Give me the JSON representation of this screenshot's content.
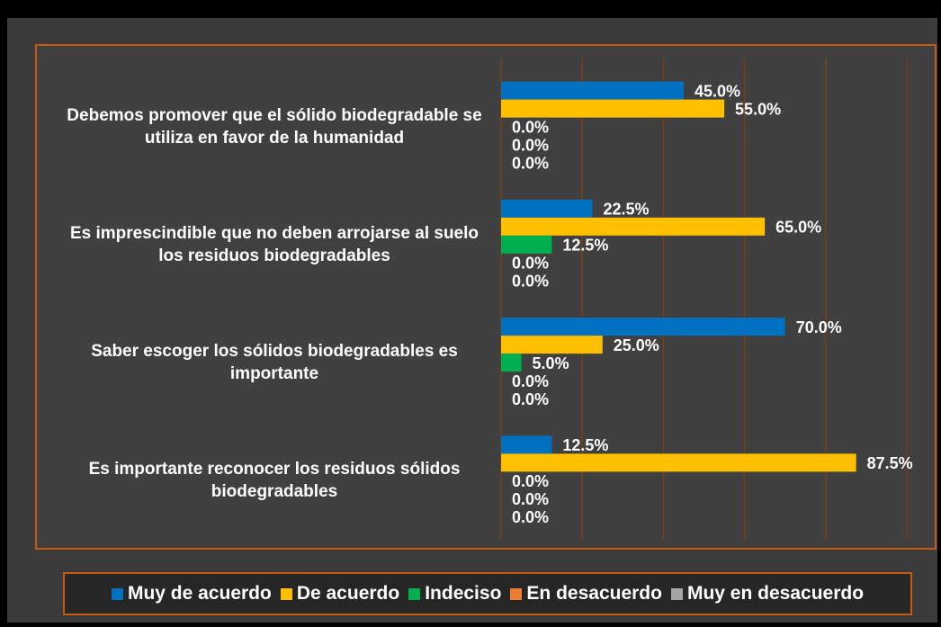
{
  "chart_data": {
    "type": "bar",
    "orientation": "horizontal",
    "categories": [
      "Debemos promover que el sólido biodegradable se utiliza en favor de la humanidad",
      "Es imprescindible que no deben arrojarse al suelo los residuos biodegradables",
      "Saber escoger los sólidos biodegradables es importante",
      "Es importante reconocer los residuos sólidos biodegradables"
    ],
    "series": [
      {
        "name": "Muy de acuerdo",
        "color": "#0070c0",
        "values": [
          45,
          22.5,
          70,
          12.5
        ],
        "value_labels": [
          "45.0%",
          "22.5%",
          "70.0%",
          "12.5%"
        ]
      },
      {
        "name": "De acuerdo",
        "color": "#ffc000",
        "values": [
          55,
          65,
          25,
          87.5
        ],
        "value_labels": [
          "55.0%",
          "65.0%",
          "25.0%",
          "87.5%"
        ]
      },
      {
        "name": "Indeciso",
        "color": "#00b050",
        "values": [
          0,
          12.5,
          5,
          0
        ],
        "value_labels": [
          "0.0%",
          "12.5%",
          "5.0%",
          "0.0%"
        ]
      },
      {
        "name": "En desacuerdo",
        "color": "#ed7d31",
        "values": [
          0,
          0,
          0,
          0
        ],
        "value_labels": [
          "0.0%",
          "0.0%",
          "0.0%",
          "0.0%"
        ]
      },
      {
        "name": "Muy en desacuerdo",
        "color": "#a5a5a5",
        "values": [
          0,
          0,
          0,
          0
        ],
        "value_labels": [
          "0.0%",
          "0.0%",
          "0.0%",
          "0.0%"
        ]
      }
    ],
    "xlim": [
      0,
      100
    ],
    "xticks": [
      0,
      20,
      40,
      60,
      80,
      100
    ],
    "grid": true,
    "legend": "bottom"
  }
}
